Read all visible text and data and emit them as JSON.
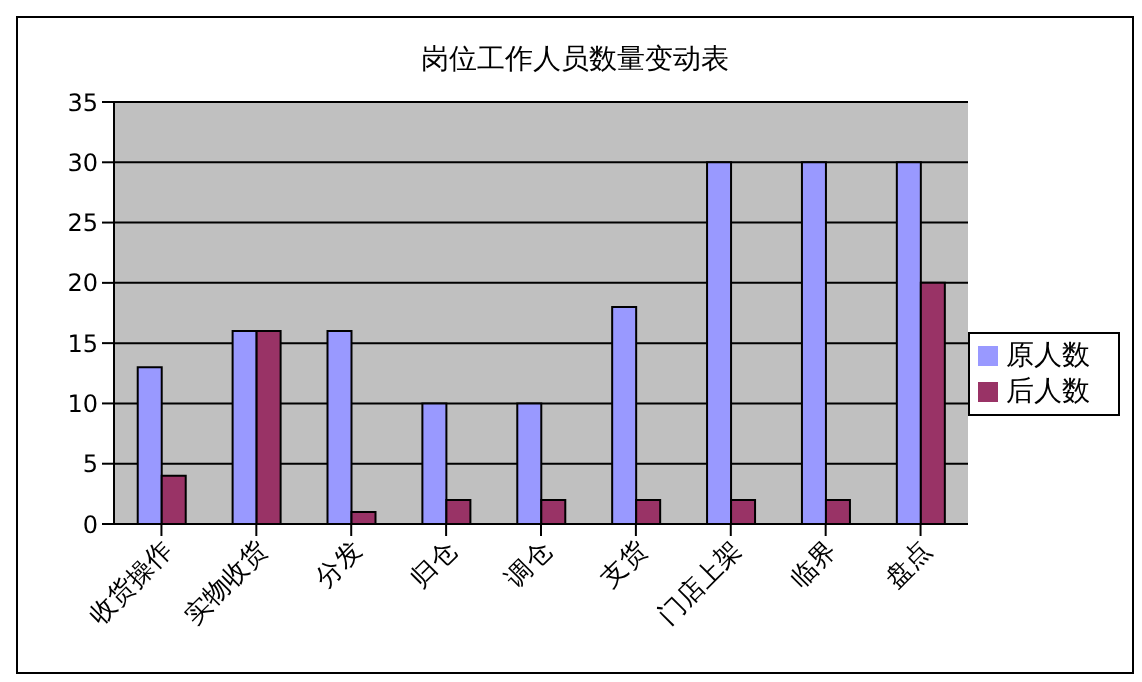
{
  "chart_data": {
    "type": "bar",
    "title": "岗位工作人员数量变动表",
    "categories": [
      "收货操作",
      "实物收货",
      "分发",
      "归仓",
      "调仓",
      "支货",
      "门店上架",
      "临界",
      "盘点"
    ],
    "series": [
      {
        "name": "原人数",
        "color": "#9999ff",
        "values": [
          13,
          16,
          16,
          10,
          10,
          18,
          30,
          30,
          30
        ]
      },
      {
        "name": "后人数",
        "color": "#993366",
        "values": [
          4,
          16,
          1,
          2,
          2,
          2,
          2,
          2,
          20
        ]
      }
    ],
    "ylim": [
      0,
      35
    ],
    "yticks": [
      0,
      5,
      10,
      15,
      20,
      25,
      30,
      35
    ],
    "grid": "y",
    "legend": "right"
  }
}
